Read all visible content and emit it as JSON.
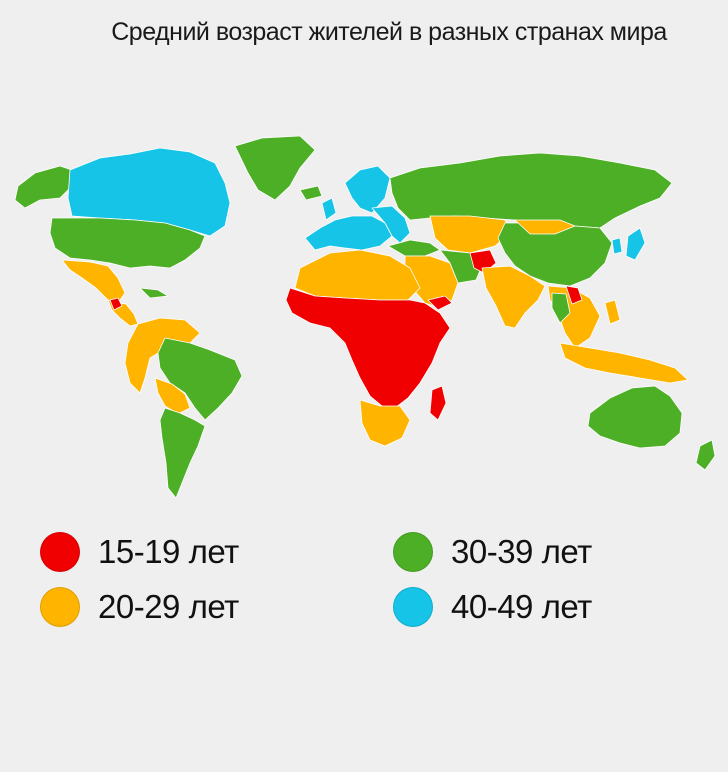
{
  "title": "Средний возраст жителей в разных странах мира",
  "colors": {
    "age_15_19": "#f00000",
    "age_20_29": "#ffb400",
    "age_30_39": "#4caf25",
    "age_40_49": "#15c4e6",
    "no_data": "#ffffff",
    "background": "#efefef"
  },
  "legend": [
    {
      "key": "age_15_19",
      "label": "15-19 лет",
      "color": "#f00000"
    },
    {
      "key": "age_20_29",
      "label": "20-29 лет",
      "color": "#ffb400"
    },
    {
      "key": "age_30_39",
      "label": "30-39 лет",
      "color": "#4caf25"
    },
    {
      "key": "age_40_49",
      "label": "40-49 лет",
      "color": "#15c4e6"
    }
  ]
}
